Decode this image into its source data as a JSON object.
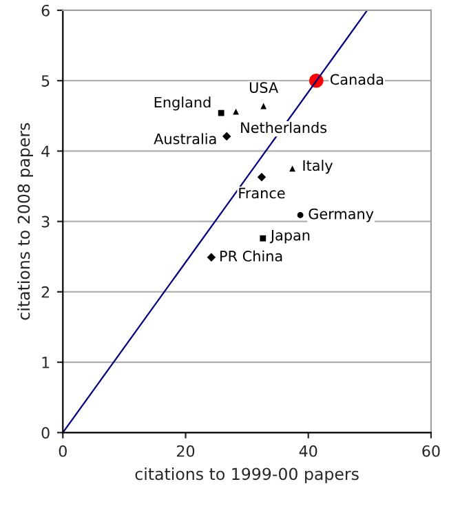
{
  "chart_data": {
    "type": "scatter",
    "xlabel": "citations to 1999-00 papers",
    "ylabel": "citations to 2008 papers",
    "xlim": [
      0,
      60
    ],
    "xticks": [
      0,
      20,
      40,
      60
    ],
    "ylim": [
      0,
      6
    ],
    "yticks": [
      0,
      1,
      2,
      3,
      4,
      5,
      6
    ],
    "grid": "y",
    "legend": false,
    "series": [
      {
        "name": "Canada",
        "color": "#ff0000",
        "marker": "circle",
        "x": [
          41.3
        ],
        "values": [
          5.0
        ]
      },
      {
        "name": "England",
        "color": "#000000",
        "marker": "square",
        "x": [
          25.8
        ],
        "values": [
          4.54
        ]
      },
      {
        "name": "Netherlands",
        "color": "#000000",
        "marker": "triangle",
        "x": [
          28.2
        ],
        "values": [
          4.56
        ]
      },
      {
        "name": "USA",
        "color": "#000000",
        "marker": "triangle",
        "x": [
          32.7
        ],
        "values": [
          4.64
        ]
      },
      {
        "name": "Australia",
        "color": "#000000",
        "marker": "diamond",
        "x": [
          26.7
        ],
        "values": [
          4.21
        ]
      },
      {
        "name": "France",
        "color": "#000000",
        "marker": "diamond",
        "x": [
          32.4
        ],
        "values": [
          3.63
        ]
      },
      {
        "name": "Italy",
        "color": "#000000",
        "marker": "triangle",
        "x": [
          37.4
        ],
        "values": [
          3.75
        ]
      },
      {
        "name": "Germany",
        "color": "#000000",
        "marker": "circle",
        "x": [
          38.7
        ],
        "values": [
          3.09
        ]
      },
      {
        "name": "Japan",
        "color": "#000000",
        "marker": "square",
        "x": [
          32.6
        ],
        "values": [
          2.76
        ]
      },
      {
        "name": "PR China",
        "color": "#000000",
        "marker": "diamond",
        "x": [
          24.2
        ],
        "values": [
          2.49
        ]
      },
      {
        "type": "line",
        "color": "#000080",
        "marker": "none",
        "x": [
          0,
          49.6
        ],
        "values": [
          0,
          6
        ]
      }
    ]
  }
}
